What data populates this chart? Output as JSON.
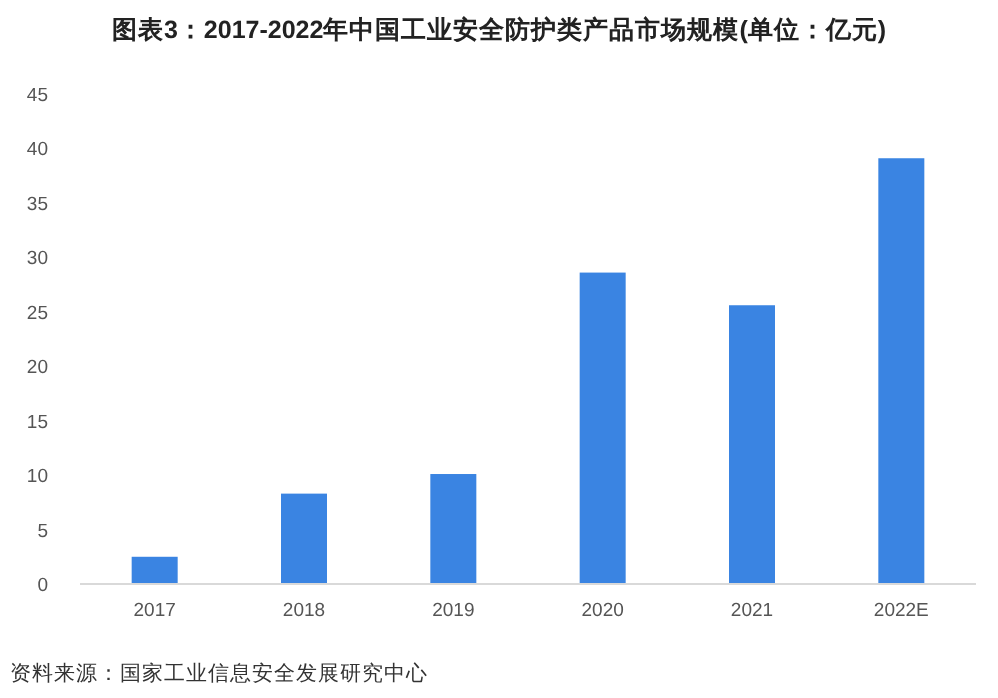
{
  "chart_data": {
    "type": "bar",
    "title": "图表3：2017-2022年中国工业安全防护类产品市场规模(单位：亿元)",
    "categories": [
      "2017",
      "2018",
      "2019",
      "2020",
      "2021",
      "2022E"
    ],
    "values": [
      2.5,
      8.3,
      10.1,
      28.6,
      25.6,
      39.1
    ],
    "color": "#3a84e2",
    "ylim": [
      0,
      45
    ],
    "yticks": [
      0,
      5,
      10,
      15,
      20,
      25,
      30,
      35,
      40,
      45
    ],
    "grid": false,
    "annotations": [
      "资料来源：国家工业信息安全发展研究中心"
    ]
  }
}
